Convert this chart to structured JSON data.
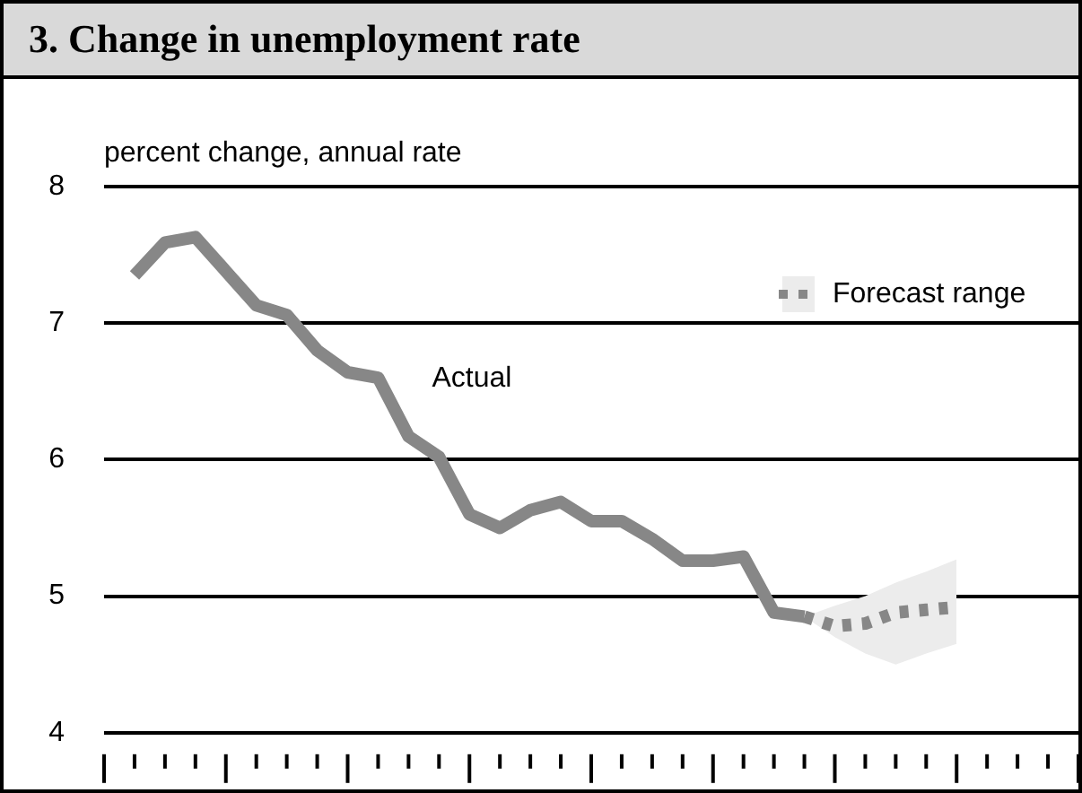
{
  "chart_data": {
    "type": "line",
    "title": "3. Change in unemployment rate",
    "ylabel": "percent change, annual rate",
    "categories": [
      null,
      null,
      null,
      null,
      null,
      null,
      null,
      null,
      null,
      null,
      null,
      null,
      null,
      null,
      null,
      null,
      null,
      null,
      null,
      null,
      null,
      null,
      null,
      null,
      null,
      null,
      null,
      null,
      null,
      null,
      null,
      null,
      null
    ],
    "series": [
      {
        "name": "Actual",
        "color": "#878787",
        "line_style": "solid",
        "values": [
          null,
          7.35,
          7.59,
          7.63,
          7.38,
          7.13,
          7.06,
          6.8,
          6.64,
          6.6,
          6.17,
          6.02,
          5.6,
          5.5,
          5.63,
          5.69,
          5.55,
          5.55,
          5.42,
          5.26,
          5.26,
          5.29,
          4.88,
          4.85,
          null,
          null,
          null,
          null,
          null,
          null,
          null,
          null,
          null
        ]
      },
      {
        "name": "Forecast range",
        "color": "#878787",
        "line_style": "dotted",
        "values": [
          null,
          null,
          null,
          null,
          null,
          null,
          null,
          null,
          null,
          null,
          null,
          null,
          null,
          null,
          null,
          null,
          null,
          null,
          null,
          null,
          null,
          null,
          null,
          4.85,
          4.78,
          4.8,
          4.88,
          4.9,
          4.92,
          null,
          null,
          null,
          null
        ],
        "lower": [
          null,
          null,
          null,
          null,
          null,
          null,
          null,
          null,
          null,
          null,
          null,
          null,
          null,
          null,
          null,
          null,
          null,
          null,
          null,
          null,
          null,
          null,
          null,
          4.85,
          4.7,
          4.58,
          4.5,
          4.58,
          4.65,
          null,
          null,
          null,
          null
        ],
        "upper": [
          null,
          null,
          null,
          null,
          null,
          null,
          null,
          null,
          null,
          null,
          null,
          null,
          null,
          null,
          null,
          null,
          null,
          null,
          null,
          null,
          null,
          null,
          null,
          4.85,
          4.93,
          5.0,
          5.1,
          5.18,
          5.27,
          null,
          null,
          null,
          null
        ]
      }
    ],
    "ylim": [
      4,
      8
    ],
    "yticks": [
      4,
      5,
      6,
      7,
      8
    ],
    "grid": "y",
    "legend": "top right",
    "marker": "none"
  }
}
